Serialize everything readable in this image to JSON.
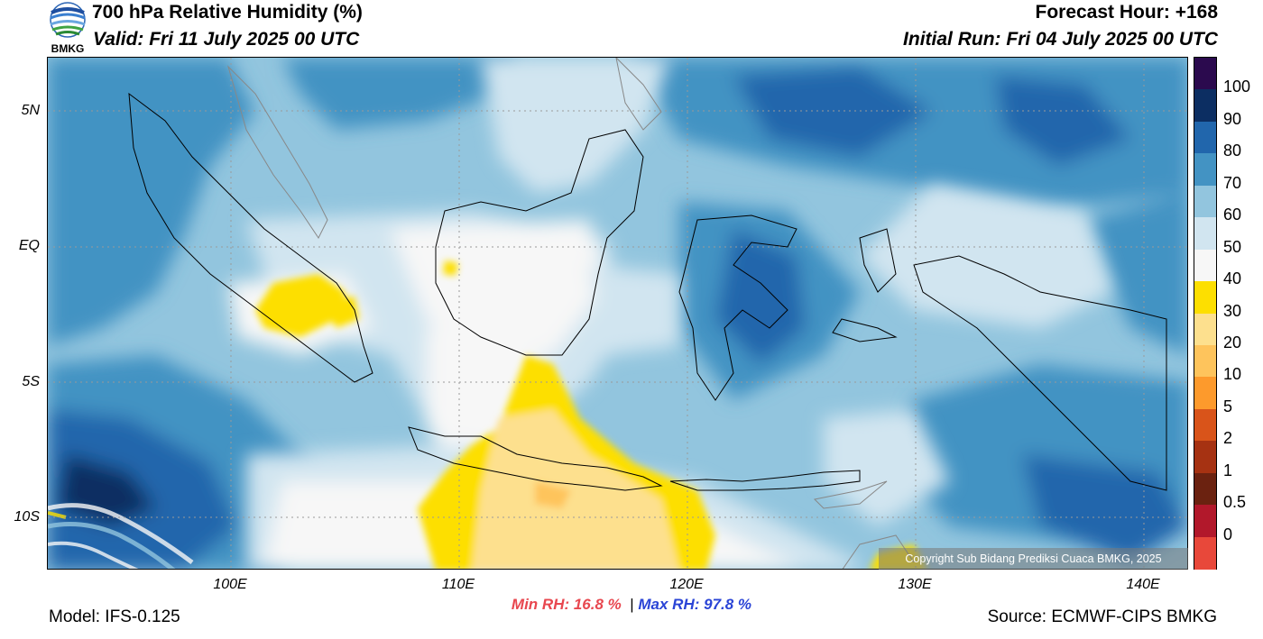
{
  "header": {
    "title": "700 hPa Relative Humidity (%)",
    "valid": "Valid: Fri 11 July 2025 00 UTC",
    "forecast_hour": "Forecast Hour: +168",
    "initial_run": "Initial Run: Fri 04 July 2025 00 UTC",
    "logo_text": "BMKG"
  },
  "map": {
    "lat_labels": [
      "5N",
      "EQ",
      "5S",
      "10S"
    ],
    "lon_labels": [
      "100E",
      "110E",
      "120E",
      "130E",
      "140E"
    ],
    "copyright": "Copyright Sub Bidang Prediksi Cuaca BMKG, 2025"
  },
  "colorbar": {
    "labels": [
      "100",
      "90",
      "80",
      "70",
      "60",
      "50",
      "40",
      "30",
      "20",
      "10",
      "5",
      "2",
      "1",
      "0.5",
      "0"
    ],
    "colors": [
      "#2b0a4e",
      "#0c2e62",
      "#2166ac",
      "#4393c3",
      "#92c5de",
      "#d1e5f0",
      "#f7f7f7",
      "#fddf00",
      "#fde08e",
      "#fec45c",
      "#fd9a2c",
      "#d9541a",
      "#a63212",
      "#6b2210",
      "#b2182b",
      "#e8483a"
    ]
  },
  "stats": {
    "min_rh": "Min RH:  16.8 %",
    "separator": "|",
    "max_rh": "Max RH:  97.8 %"
  },
  "footer": {
    "model": "Model: IFS-0.125",
    "source": "Source: ECMWF-CIPS BMKG"
  }
}
